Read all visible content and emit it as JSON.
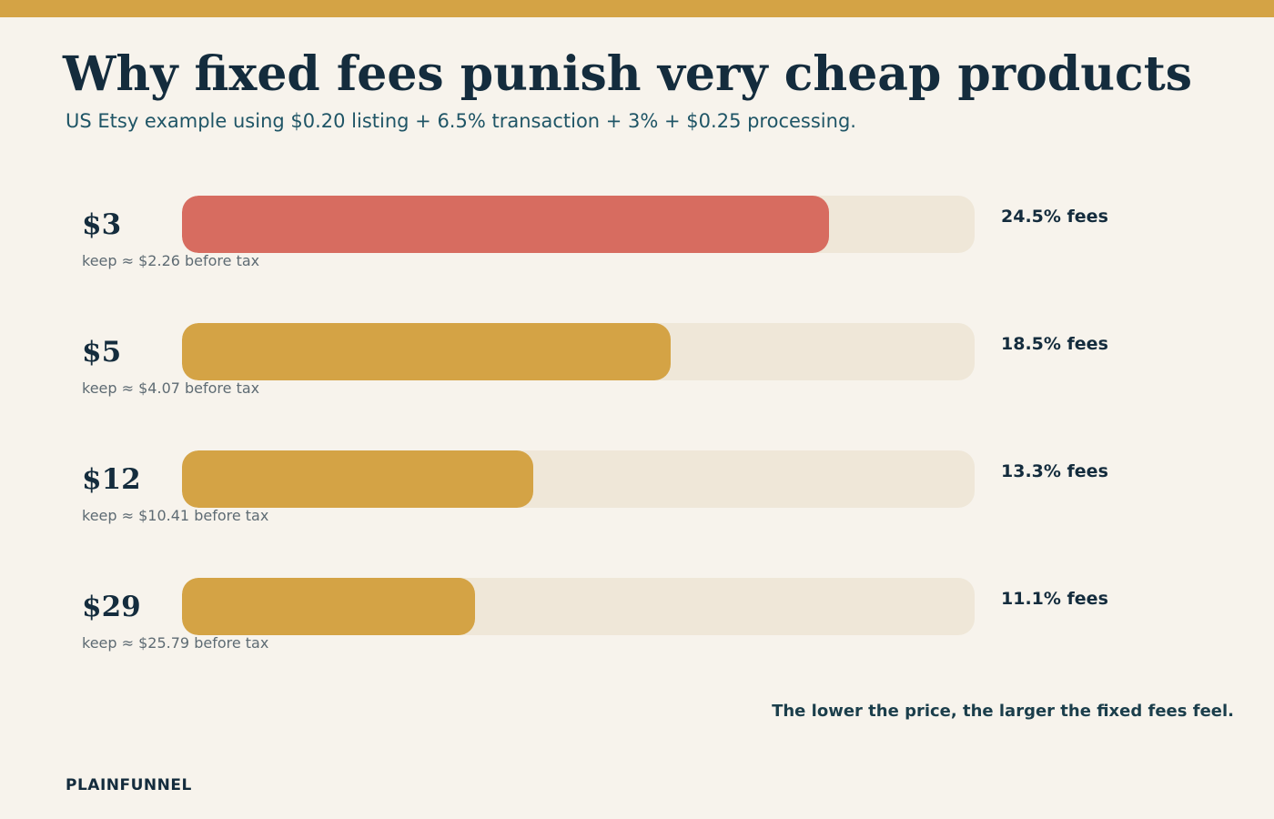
{
  "title": "Why fixed fees punish very cheap products",
  "subtitle": "US Etsy example using $0.20 listing + 6.5% transaction + 3% + $0.25 processing.",
  "footnote": "The lower the price, the larger the fixed fees feel.",
  "brand": "PLAINFUNNEL",
  "colors": {
    "accent": "#d4a345",
    "highlight": "#d76c60",
    "track": "#efe7d8",
    "background": "#f7f3ec"
  },
  "chart_data": {
    "type": "bar",
    "orientation": "horizontal",
    "title": "Why fixed fees punish very cheap products",
    "subtitle": "US Etsy example using $0.20 listing + 6.5% transaction + 3% + $0.25 processing.",
    "categories": [
      "$3",
      "$5",
      "$12",
      "$29"
    ],
    "values": [
      24.5,
      18.5,
      13.3,
      11.1
    ],
    "xlim": [
      0,
      30
    ],
    "grid": false,
    "rows": [
      {
        "price": "$3",
        "keep": "keep ≈ $2.26 before tax",
        "fee_pct": 24.5,
        "fee_label": "24.5% fees",
        "highlight": true
      },
      {
        "price": "$5",
        "keep": "keep ≈ $4.07 before tax",
        "fee_pct": 18.5,
        "fee_label": "18.5% fees",
        "highlight": false
      },
      {
        "price": "$12",
        "keep": "keep ≈ $10.41 before tax",
        "fee_pct": 13.3,
        "fee_label": "13.3% fees",
        "highlight": false
      },
      {
        "price": "$29",
        "keep": "keep ≈ $25.79 before tax",
        "fee_pct": 11.1,
        "fee_label": "11.1% fees",
        "highlight": false
      }
    ]
  }
}
